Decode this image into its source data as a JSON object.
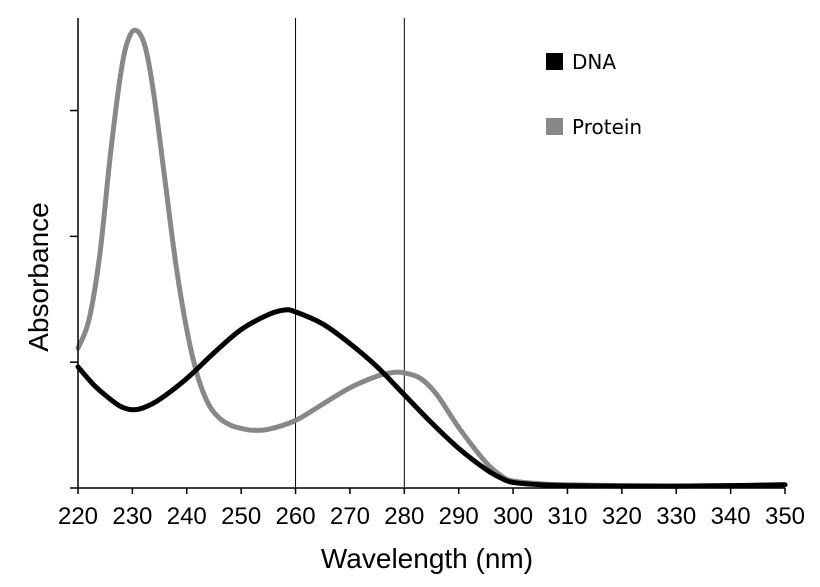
{
  "chart_data": {
    "type": "line",
    "title": "",
    "xlabel": "Wavelength (nm)",
    "ylabel": "Absorbance",
    "xlim": [
      220,
      350
    ],
    "ylim": [
      0,
      1
    ],
    "x_ticks": [
      220,
      230,
      240,
      250,
      260,
      270,
      280,
      290,
      300,
      310,
      320,
      330,
      340,
      350
    ],
    "y_ticks_labeled": false,
    "y_tick_positions": [
      0,
      0.27,
      0.54,
      0.81
    ],
    "reference_lines_x": [
      260,
      280
    ],
    "grid": false,
    "legend_position": "top-right",
    "series": [
      {
        "name": "DNA",
        "color": "#000000",
        "points": [
          [
            220,
            0.26
          ],
          [
            223,
            0.22
          ],
          [
            226,
            0.19
          ],
          [
            228,
            0.174
          ],
          [
            230,
            0.168
          ],
          [
            232,
            0.172
          ],
          [
            235,
            0.19
          ],
          [
            240,
            0.235
          ],
          [
            245,
            0.29
          ],
          [
            250,
            0.34
          ],
          [
            255,
            0.372
          ],
          [
            258,
            0.382
          ],
          [
            260,
            0.378
          ],
          [
            265,
            0.352
          ],
          [
            270,
            0.31
          ],
          [
            275,
            0.26
          ],
          [
            280,
            0.2
          ],
          [
            285,
            0.14
          ],
          [
            290,
            0.085
          ],
          [
            295,
            0.04
          ],
          [
            298,
            0.02
          ],
          [
            300,
            0.012
          ],
          [
            305,
            0.007
          ],
          [
            310,
            0.005
          ],
          [
            320,
            0.004
          ],
          [
            330,
            0.004
          ],
          [
            340,
            0.005
          ],
          [
            350,
            0.007
          ]
        ]
      },
      {
        "name": "Protein",
        "color": "#888888",
        "points": [
          [
            220,
            0.3
          ],
          [
            222,
            0.36
          ],
          [
            224,
            0.5
          ],
          [
            226,
            0.72
          ],
          [
            228,
            0.9
          ],
          [
            229.5,
            0.97
          ],
          [
            231,
            0.98
          ],
          [
            232.5,
            0.94
          ],
          [
            234,
            0.84
          ],
          [
            236,
            0.66
          ],
          [
            238,
            0.48
          ],
          [
            240,
            0.34
          ],
          [
            242,
            0.24
          ],
          [
            244,
            0.18
          ],
          [
            246,
            0.15
          ],
          [
            248,
            0.135
          ],
          [
            250,
            0.128
          ],
          [
            252,
            0.124
          ],
          [
            255,
            0.126
          ],
          [
            260,
            0.145
          ],
          [
            265,
            0.18
          ],
          [
            270,
            0.215
          ],
          [
            275,
            0.24
          ],
          [
            278,
            0.248
          ],
          [
            280,
            0.247
          ],
          [
            283,
            0.235
          ],
          [
            286,
            0.2
          ],
          [
            290,
            0.13
          ],
          [
            295,
            0.055
          ],
          [
            298,
            0.025
          ],
          [
            300,
            0.015
          ],
          [
            305,
            0.009
          ],
          [
            310,
            0.007
          ],
          [
            320,
            0.005
          ],
          [
            330,
            0.004
          ],
          [
            340,
            0.005
          ],
          [
            350,
            0.007
          ]
        ]
      }
    ]
  }
}
